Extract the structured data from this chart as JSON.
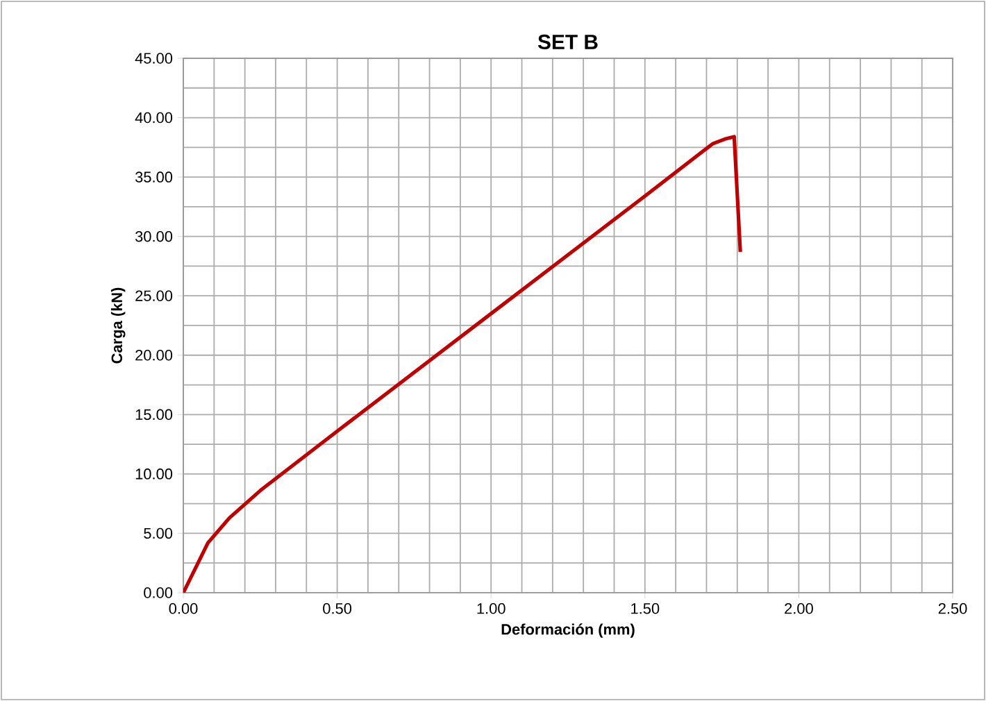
{
  "chart_data": {
    "type": "line",
    "title": "SET B",
    "xlabel": "Deformación (mm)",
    "ylabel": "Carga (kN)",
    "x": [
      0,
      0.08,
      0.15,
      0.25,
      0.5,
      1.0,
      1.5,
      1.72,
      1.76,
      1.79,
      1.81
    ],
    "series": [
      {
        "color": "#c00000",
        "values": [
          0,
          4.2,
          6.3,
          8.6,
          13.6,
          23.5,
          33.4,
          37.8,
          38.2,
          38.4,
          28.7
        ]
      }
    ],
    "xlim": [
      0,
      2.5
    ],
    "ylim": [
      0,
      45
    ],
    "xticks": [
      {
        "value": 0,
        "label": "0.00"
      },
      {
        "value": 0.5,
        "label": "0.50"
      },
      {
        "value": 1.0,
        "label": "1.00"
      },
      {
        "value": 1.5,
        "label": "1.50"
      },
      {
        "value": 2.0,
        "label": "2.00"
      },
      {
        "value": 2.5,
        "label": "2.50"
      }
    ],
    "yticks": [
      {
        "value": 0,
        "label": "0.00"
      },
      {
        "value": 5,
        "label": "5.00"
      },
      {
        "value": 10,
        "label": "10.00"
      },
      {
        "value": 15,
        "label": "15.00"
      },
      {
        "value": 20,
        "label": "20.00"
      },
      {
        "value": 25,
        "label": "25.00"
      },
      {
        "value": 30,
        "label": "30.00"
      },
      {
        "value": 35,
        "label": "35.00"
      },
      {
        "value": 40,
        "label": "40.00"
      },
      {
        "value": 45,
        "label": "45.00"
      }
    ],
    "grid": true,
    "marker": "none",
    "line_style": "solid"
  }
}
